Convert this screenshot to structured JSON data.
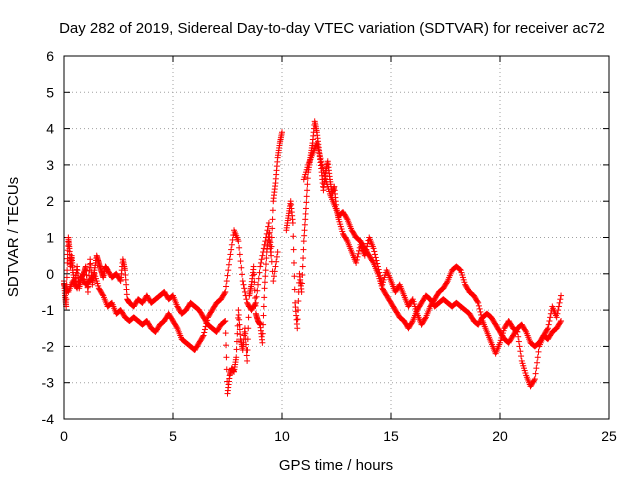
{
  "chart_data": {
    "type": "scatter",
    "title": "Day 282 of 2019, Sidereal Day-to-day VTEC variation (SDTVAR) for receiver ac72",
    "xlabel": "GPS time / hours",
    "ylabel": "SDTVAR / TECUs",
    "xlim": [
      0,
      25
    ],
    "ylim": [
      -4,
      6
    ],
    "xticks": [
      0,
      5,
      10,
      15,
      20,
      25
    ],
    "yticks": [
      -4,
      -3,
      -2,
      -1,
      0,
      1,
      2,
      3,
      4,
      5,
      6
    ],
    "grid": true,
    "marker": "+",
    "colors": {
      "series": "#ff0000",
      "grid": "#a0a0a0",
      "axes": "#000000"
    },
    "series": [
      {
        "name": "SDTVAR",
        "track_a": [
          [
            0.0,
            -0.2
          ],
          [
            0.05,
            -0.6
          ],
          [
            0.1,
            -0.9
          ],
          [
            0.15,
            0.3
          ],
          [
            0.2,
            1.0
          ],
          [
            0.25,
            0.7
          ],
          [
            0.3,
            0.2
          ],
          [
            0.35,
            0.5
          ],
          [
            0.4,
            0.1
          ],
          [
            0.5,
            -0.3
          ],
          [
            0.6,
            0.2
          ],
          [
            0.7,
            -0.4
          ],
          [
            0.8,
            -0.1
          ],
          [
            0.9,
            0.0
          ],
          [
            1.0,
            0.2
          ],
          [
            1.1,
            -0.5
          ],
          [
            1.2,
            0.4
          ],
          [
            1.3,
            -0.3
          ],
          [
            1.4,
            0.1
          ],
          [
            1.5,
            0.5
          ],
          [
            1.6,
            0.3
          ],
          [
            1.7,
            0.1
          ],
          [
            1.8,
            -0.1
          ],
          [
            1.9,
            0.2
          ],
          [
            2.0,
            0.1
          ],
          [
            2.2,
            -0.1
          ],
          [
            2.4,
            0.0
          ],
          [
            2.6,
            -0.2
          ],
          [
            2.7,
            0.4
          ],
          [
            2.8,
            0.1
          ],
          [
            2.9,
            -0.7
          ],
          [
            3.0,
            -0.8
          ],
          [
            3.2,
            -0.9
          ],
          [
            3.4,
            -0.7
          ],
          [
            3.6,
            -0.8
          ],
          [
            3.8,
            -0.6
          ],
          [
            4.0,
            -0.8
          ],
          [
            4.2,
            -0.7
          ],
          [
            4.4,
            -0.6
          ],
          [
            4.6,
            -0.5
          ],
          [
            4.8,
            -0.7
          ],
          [
            5.0,
            -0.6
          ],
          [
            5.2,
            -0.9
          ],
          [
            5.4,
            -1.1
          ],
          [
            5.6,
            -1.0
          ],
          [
            5.8,
            -0.8
          ],
          [
            6.0,
            -0.9
          ],
          [
            6.2,
            -1.0
          ],
          [
            6.4,
            -1.2
          ],
          [
            6.6,
            -1.4
          ],
          [
            6.8,
            -1.5
          ],
          [
            7.0,
            -1.6
          ],
          [
            7.2,
            -1.4
          ],
          [
            7.4,
            -1.3
          ],
          [
            7.5,
            -3.3
          ],
          [
            7.6,
            -2.8
          ],
          [
            7.7,
            -2.6
          ],
          [
            7.8,
            -2.7
          ],
          [
            7.9,
            -2.3
          ],
          [
            8.0,
            -1.0
          ],
          [
            8.1,
            -1.8
          ],
          [
            8.2,
            -2.1
          ],
          [
            8.3,
            -1.5
          ],
          [
            8.4,
            -2.4
          ],
          [
            8.5,
            -0.6
          ],
          [
            8.6,
            -0.3
          ],
          [
            8.7,
            0.2
          ],
          [
            8.8,
            -1.1
          ],
          [
            8.9,
            -1.3
          ],
          [
            9.0,
            -1.4
          ],
          [
            9.1,
            -1.9
          ],
          [
            9.2,
            -0.4
          ],
          [
            9.3,
            0.6
          ],
          [
            9.4,
            1.1
          ],
          [
            9.5,
            0.5
          ],
          [
            9.6,
            2.0
          ],
          [
            9.7,
            2.5
          ],
          [
            9.8,
            3.2
          ],
          [
            9.9,
            3.6
          ],
          [
            10.0,
            3.9
          ]
        ],
        "track_b": [
          [
            0.0,
            -0.3
          ],
          [
            0.2,
            -0.5
          ],
          [
            0.4,
            -0.2
          ],
          [
            0.6,
            -0.4
          ],
          [
            0.8,
            -0.1
          ],
          [
            1.0,
            -0.3
          ],
          [
            1.2,
            -0.2
          ],
          [
            1.4,
            0.0
          ],
          [
            1.6,
            -0.4
          ],
          [
            1.8,
            -0.6
          ],
          [
            2.0,
            -0.9
          ],
          [
            2.2,
            -0.8
          ],
          [
            2.4,
            -1.1
          ],
          [
            2.6,
            -1.0
          ],
          [
            2.8,
            -1.2
          ],
          [
            3.0,
            -1.3
          ],
          [
            3.2,
            -1.2
          ],
          [
            3.4,
            -1.3
          ],
          [
            3.6,
            -1.4
          ],
          [
            3.8,
            -1.3
          ],
          [
            4.0,
            -1.5
          ],
          [
            4.2,
            -1.6
          ],
          [
            4.4,
            -1.4
          ],
          [
            4.6,
            -1.3
          ],
          [
            4.8,
            -1.1
          ],
          [
            5.0,
            -1.3
          ],
          [
            5.2,
            -1.5
          ],
          [
            5.4,
            -1.8
          ],
          [
            5.6,
            -1.9
          ],
          [
            5.8,
            -2.0
          ],
          [
            6.0,
            -2.1
          ],
          [
            6.2,
            -1.9
          ],
          [
            6.4,
            -1.7
          ],
          [
            6.6,
            -1.2
          ],
          [
            6.8,
            -1.0
          ],
          [
            7.0,
            -0.8
          ],
          [
            7.2,
            -0.7
          ],
          [
            7.4,
            -0.5
          ],
          [
            7.6,
            0.4
          ],
          [
            7.8,
            1.2
          ],
          [
            8.0,
            0.9
          ],
          [
            8.2,
            -0.2
          ],
          [
            8.4,
            -0.8
          ],
          [
            8.6,
            -1.0
          ],
          [
            8.8,
            -0.8
          ],
          [
            9.0,
            0.2
          ],
          [
            9.2,
            0.8
          ],
          [
            9.4,
            1.4
          ],
          [
            9.6,
            -0.2
          ],
          [
            9.8,
            0.6
          ]
        ],
        "track_c": [
          [
            10.2,
            1.2
          ],
          [
            10.3,
            1.6
          ],
          [
            10.4,
            2.0
          ],
          [
            10.5,
            1.4
          ],
          [
            10.6,
            -0.8
          ],
          [
            10.7,
            -1.5
          ],
          [
            10.8,
            0.0
          ],
          [
            10.9,
            -0.5
          ],
          [
            11.0,
            0.9
          ],
          [
            11.1,
            1.8
          ],
          [
            11.2,
            2.8
          ],
          [
            11.3,
            3.2
          ],
          [
            11.4,
            3.6
          ],
          [
            11.5,
            4.2
          ],
          [
            11.6,
            3.9
          ],
          [
            11.7,
            3.4
          ],
          [
            11.8,
            2.9
          ],
          [
            11.9,
            2.3
          ],
          [
            12.0,
            2.8
          ],
          [
            12.1,
            3.1
          ],
          [
            12.2,
            2.6
          ],
          [
            12.3,
            2.2
          ],
          [
            12.4,
            2.4
          ],
          [
            12.5,
            1.8
          ],
          [
            12.6,
            1.5
          ],
          [
            12.8,
            1.1
          ],
          [
            13.0,
            0.9
          ],
          [
            13.2,
            0.6
          ],
          [
            13.4,
            0.3
          ],
          [
            13.6,
            0.8
          ],
          [
            13.8,
            0.5
          ],
          [
            14.0,
            1.0
          ],
          [
            14.2,
            0.7
          ],
          [
            14.4,
            0.2
          ],
          [
            14.6,
            -0.3
          ],
          [
            14.8,
            0.1
          ],
          [
            15.0,
            -0.2
          ],
          [
            15.2,
            -0.5
          ],
          [
            15.4,
            -0.3
          ],
          [
            15.6,
            -0.6
          ],
          [
            15.8,
            -0.9
          ],
          [
            16.0,
            -0.7
          ],
          [
            16.2,
            -1.1
          ],
          [
            16.4,
            -1.4
          ],
          [
            16.6,
            -1.2
          ],
          [
            16.8,
            -0.9
          ],
          [
            17.0,
            -0.7
          ],
          [
            17.2,
            -0.5
          ],
          [
            17.4,
            -0.4
          ],
          [
            17.6,
            -0.2
          ],
          [
            17.8,
            0.1
          ],
          [
            18.0,
            0.2
          ],
          [
            18.2,
            0.1
          ],
          [
            18.4,
            -0.3
          ],
          [
            18.6,
            -0.5
          ],
          [
            18.8,
            -0.6
          ],
          [
            19.0,
            -0.8
          ],
          [
            19.2,
            -1.3
          ],
          [
            19.4,
            -1.6
          ],
          [
            19.6,
            -1.9
          ],
          [
            19.8,
            -2.2
          ],
          [
            20.0,
            -1.9
          ],
          [
            20.2,
            -1.5
          ],
          [
            20.4,
            -1.3
          ],
          [
            20.6,
            -1.5
          ],
          [
            20.8,
            -1.6
          ],
          [
            21.0,
            -2.4
          ],
          [
            21.2,
            -2.8
          ],
          [
            21.4,
            -3.1
          ],
          [
            21.6,
            -2.9
          ],
          [
            21.8,
            -2.0
          ],
          [
            22.0,
            -1.7
          ],
          [
            22.2,
            -1.8
          ],
          [
            22.4,
            -1.6
          ],
          [
            22.6,
            -1.5
          ],
          [
            22.8,
            -1.3
          ]
        ],
        "track_d": [
          [
            11.0,
            2.6
          ],
          [
            11.2,
            3.0
          ],
          [
            11.4,
            3.3
          ],
          [
            11.6,
            3.6
          ],
          [
            11.8,
            3.1
          ],
          [
            12.0,
            2.6
          ],
          [
            12.2,
            2.2
          ],
          [
            12.4,
            1.9
          ],
          [
            12.6,
            1.6
          ],
          [
            12.8,
            1.7
          ],
          [
            13.0,
            1.5
          ],
          [
            13.2,
            1.2
          ],
          [
            13.4,
            1.0
          ],
          [
            13.6,
            0.9
          ],
          [
            13.8,
            0.7
          ],
          [
            14.0,
            0.5
          ],
          [
            14.2,
            0.3
          ],
          [
            14.4,
            0.0
          ],
          [
            14.6,
            -0.4
          ],
          [
            14.8,
            -0.6
          ],
          [
            15.0,
            -0.8
          ],
          [
            15.2,
            -1.0
          ],
          [
            15.4,
            -1.2
          ],
          [
            15.6,
            -1.3
          ],
          [
            15.8,
            -1.5
          ],
          [
            16.0,
            -1.3
          ],
          [
            16.2,
            -1.0
          ],
          [
            16.4,
            -0.8
          ],
          [
            16.6,
            -0.6
          ],
          [
            16.8,
            -0.7
          ],
          [
            17.0,
            -0.9
          ],
          [
            17.2,
            -0.8
          ],
          [
            17.4,
            -0.7
          ],
          [
            17.6,
            -0.8
          ],
          [
            17.8,
            -0.9
          ],
          [
            18.0,
            -0.8
          ],
          [
            18.2,
            -0.9
          ],
          [
            18.4,
            -1.0
          ],
          [
            18.6,
            -1.1
          ],
          [
            18.8,
            -1.3
          ],
          [
            19.0,
            -1.4
          ],
          [
            19.2,
            -1.2
          ],
          [
            19.4,
            -1.1
          ],
          [
            19.6,
            -1.2
          ],
          [
            19.8,
            -1.4
          ],
          [
            20.0,
            -1.6
          ],
          [
            20.2,
            -1.8
          ],
          [
            20.4,
            -1.9
          ],
          [
            20.6,
            -1.7
          ],
          [
            20.8,
            -1.5
          ],
          [
            21.0,
            -1.4
          ],
          [
            21.2,
            -1.6
          ],
          [
            21.4,
            -1.9
          ],
          [
            21.6,
            -2.0
          ],
          [
            21.8,
            -1.9
          ],
          [
            22.0,
            -1.7
          ],
          [
            22.2,
            -1.5
          ],
          [
            22.4,
            -0.9
          ],
          [
            22.6,
            -1.2
          ],
          [
            22.8,
            -0.6
          ]
        ]
      }
    ]
  }
}
